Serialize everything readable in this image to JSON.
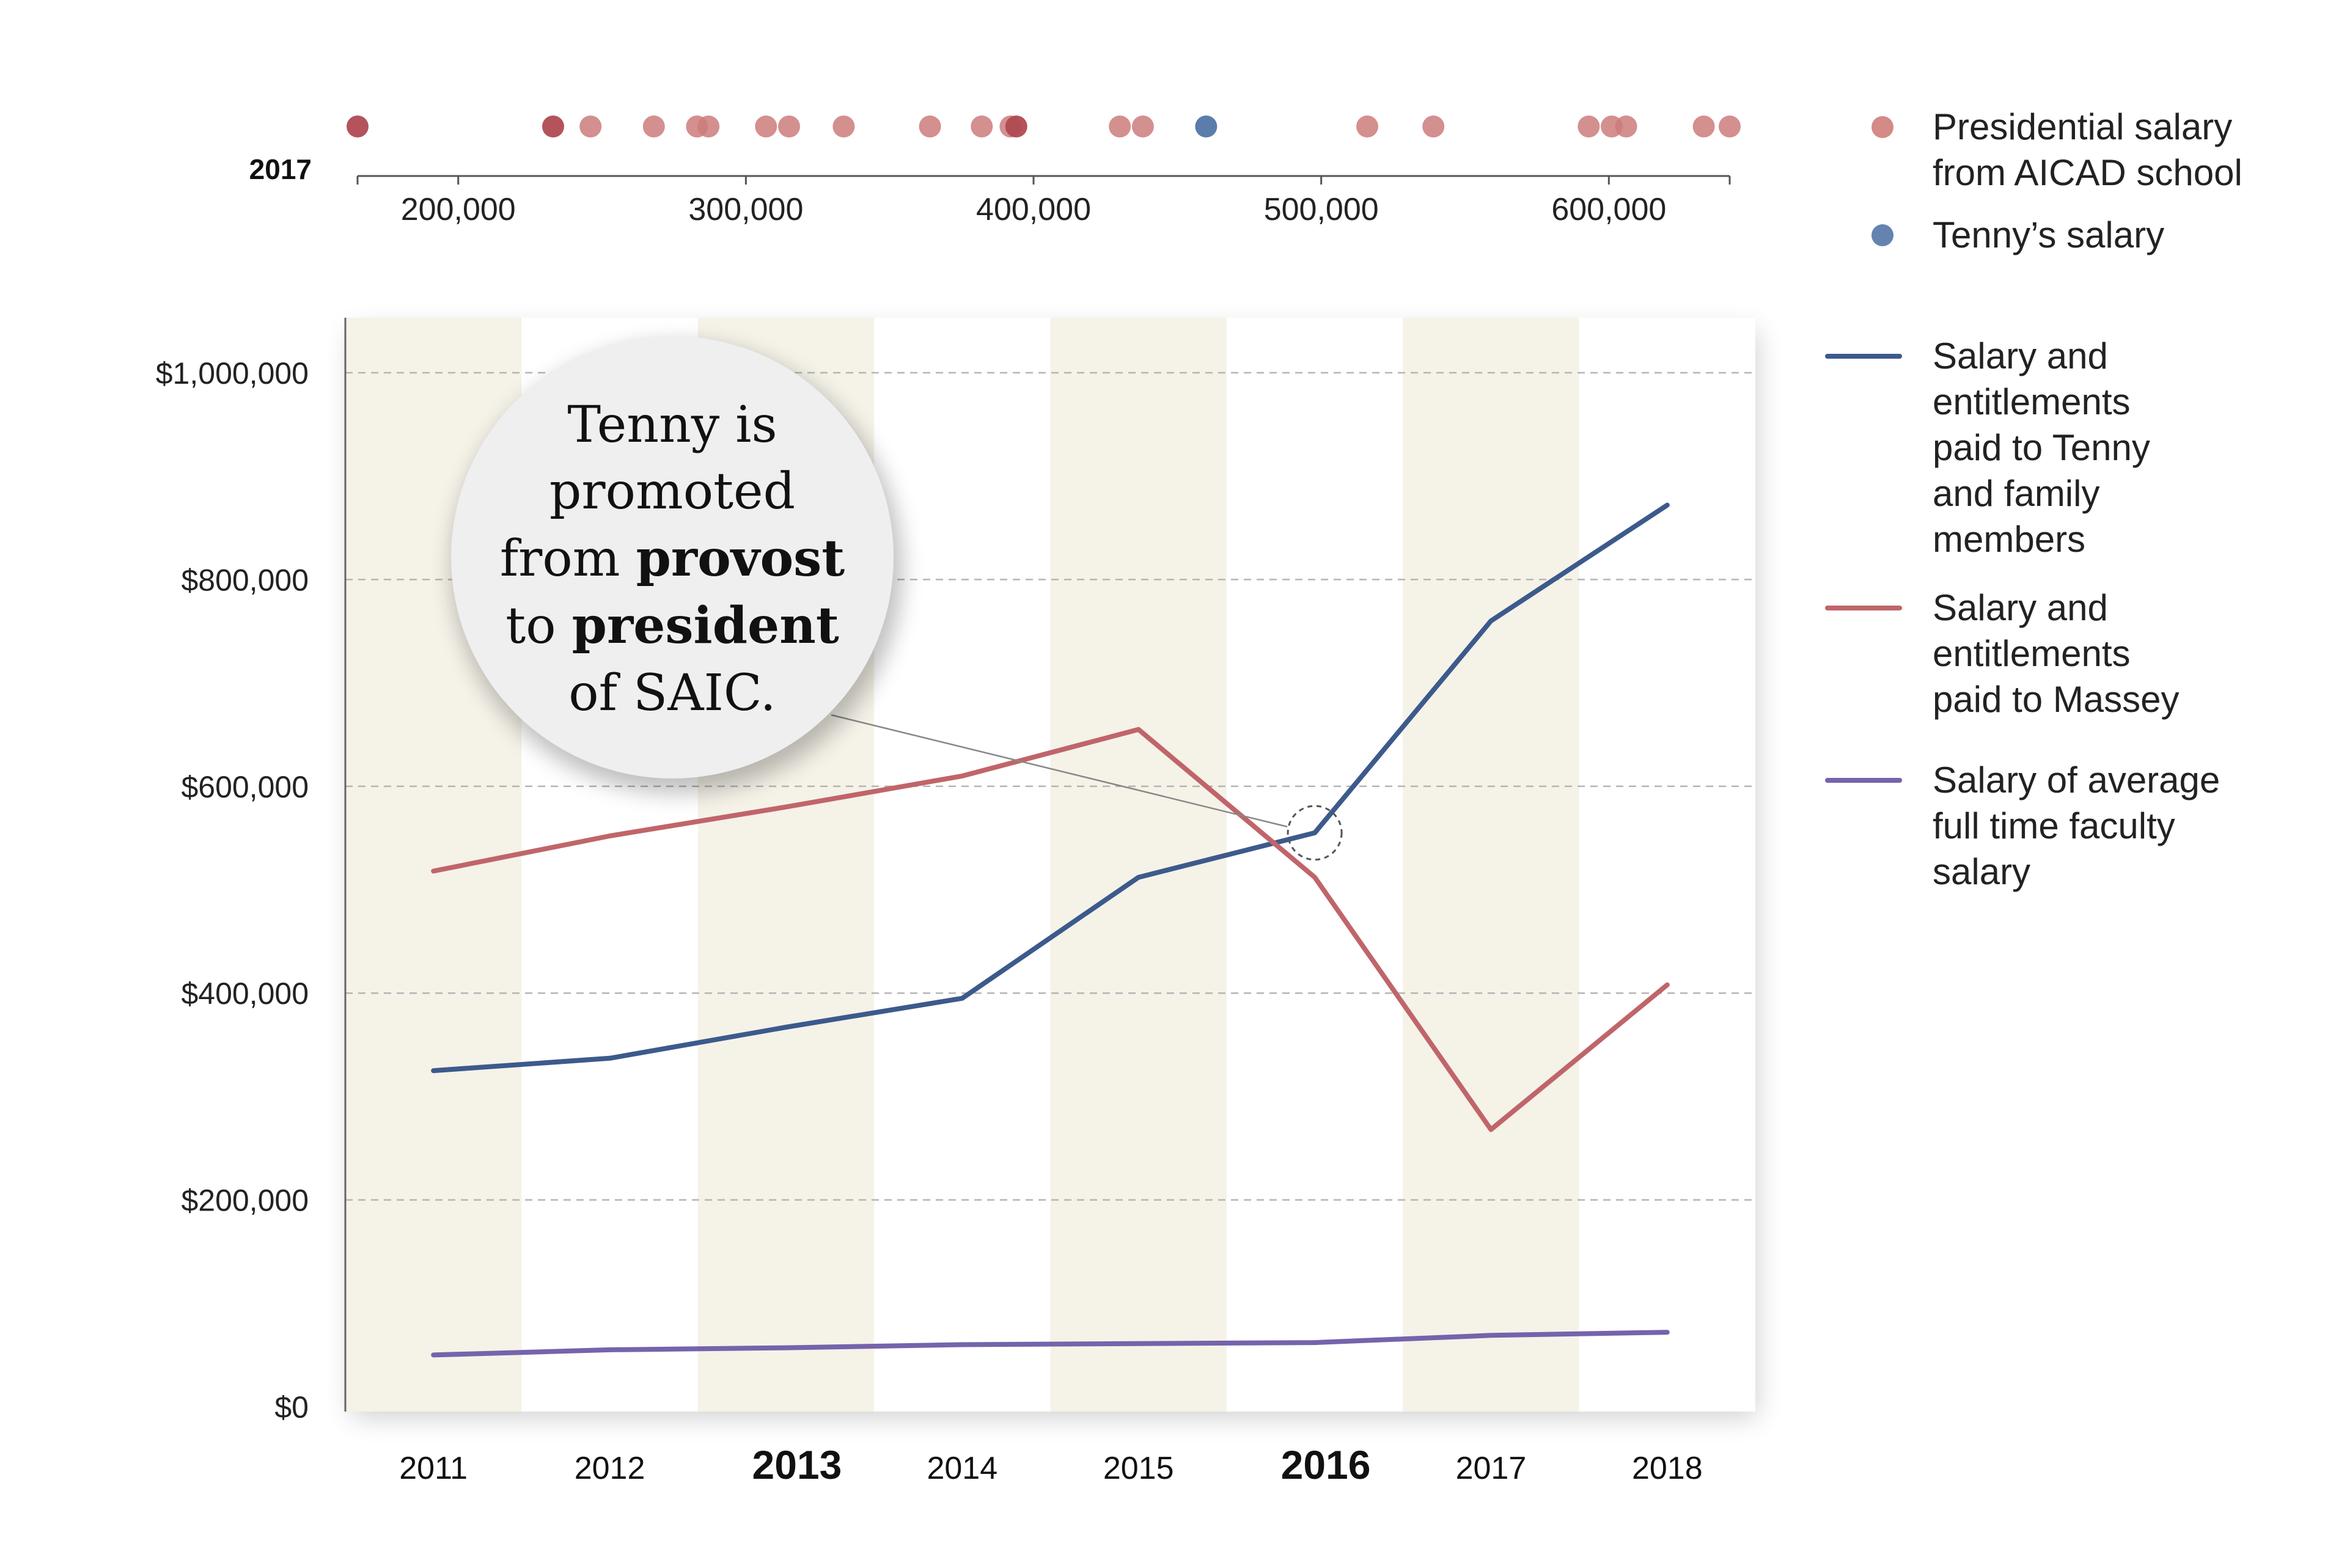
{
  "dot_strip": {
    "year_label": "2017",
    "ticks": [
      "200,000",
      "300,000",
      "400,000",
      "500,000",
      "600,000"
    ],
    "xlim": [
      165000,
      642000
    ],
    "aicad_salaries": [
      165000,
      233000,
      246000,
      268000,
      283000,
      287000,
      307000,
      315000,
      334000,
      364000,
      382000,
      392000,
      394000,
      430000,
      438000,
      516000,
      539000,
      593000,
      601000,
      606000,
      633000,
      642000
    ],
    "dark_dots": [
      165000,
      233000,
      394000
    ],
    "tenny_salary": 460000,
    "colors": {
      "aicad": "#cc7b7b",
      "aicad_dark": "#b04a52",
      "tenny": "#5b7dab"
    }
  },
  "legend": [
    {
      "label": "Presidential salary from AICAD school",
      "marker": "dot",
      "color": "#d48a87"
    },
    {
      "label": "Tenny's salary",
      "marker": "dot",
      "color": "#6583b0"
    },
    {
      "label": "Salary and entitlements paid to Tenny and family members",
      "marker": "line",
      "color": "#3c5a8c"
    },
    {
      "label": "Salary and entitlements paid to Massey",
      "marker": "line",
      "color": "#c0656a"
    },
    {
      "label": "Salary of average full time faculty salary",
      "marker": "line",
      "color": "#7563ac"
    }
  ],
  "annotation": {
    "parts": [
      {
        "text": "Tenny is",
        "bold": false
      },
      {
        "text": "promoted",
        "bold": false
      },
      {
        "text": "from ",
        "bold": false
      },
      {
        "text": "provost",
        "bold": true
      },
      {
        "text": "to ",
        "bold": false
      },
      {
        "text": "president",
        "bold": true
      },
      {
        "text": "of SAIC.",
        "bold": false
      }
    ],
    "target_year": "2016",
    "target_value": 555000
  },
  "chart_data": {
    "type": "line",
    "title": "",
    "xlabel": "",
    "ylabel": "",
    "categories": [
      "2011",
      "2012",
      "2013",
      "2014",
      "2015",
      "2016",
      "2017",
      "2018"
    ],
    "emphasized_categories": [
      "2013",
      "2016"
    ],
    "shaded_categories": [
      "2011",
      "2013",
      "2015",
      "2017"
    ],
    "ylim": [
      0,
      1000000
    ],
    "y_ticks": [
      "$0",
      "$200,000",
      "$400,000",
      "$600,000",
      "$800,000",
      "$1,000,000"
    ],
    "grid": true,
    "series": [
      {
        "name": "Salary and entitlements paid to Tenny and family members",
        "color": "#3c5a8c",
        "values": [
          325000,
          337000,
          367000,
          395000,
          512000,
          555000,
          760000,
          872000
        ]
      },
      {
        "name": "Salary and entitlements paid to Massey",
        "color": "#c0656a",
        "values": [
          518000,
          552000,
          580000,
          610000,
          655000,
          512000,
          268000,
          408000
        ]
      },
      {
        "name": "Salary of average full time faculty salary",
        "color": "#7563ac",
        "values": [
          50000,
          55000,
          57000,
          60000,
          61000,
          62000,
          69000,
          72000
        ]
      }
    ]
  }
}
